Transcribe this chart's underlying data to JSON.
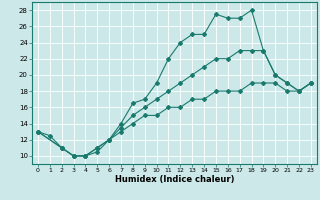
{
  "xlabel": "Humidex (Indice chaleur)",
  "bg_color": "#cce8e8",
  "grid_color": "#ffffff",
  "line_color": "#1a7a6e",
  "xlim": [
    -0.5,
    23.5
  ],
  "ylim": [
    9,
    29
  ],
  "xticks": [
    0,
    1,
    2,
    3,
    4,
    5,
    6,
    7,
    8,
    9,
    10,
    11,
    12,
    13,
    14,
    15,
    16,
    17,
    18,
    19,
    20,
    21,
    22,
    23
  ],
  "yticks": [
    10,
    12,
    14,
    16,
    18,
    20,
    22,
    24,
    26,
    28
  ],
  "series": [
    {
      "x": [
        0,
        1,
        2,
        3,
        4,
        5,
        6,
        7,
        8,
        9,
        10,
        11,
        12,
        13,
        14,
        15,
        16,
        17,
        18,
        19,
        20,
        21,
        22,
        23
      ],
      "y": [
        13,
        12.5,
        11,
        10,
        10,
        10.5,
        12,
        14,
        16.5,
        17,
        19,
        22,
        24,
        25,
        25,
        27.5,
        27,
        27,
        28,
        23,
        20,
        19,
        18,
        19
      ]
    },
    {
      "x": [
        0,
        2,
        3,
        4,
        5,
        6,
        7,
        8,
        9,
        10,
        11,
        12,
        13,
        14,
        15,
        16,
        17,
        18,
        19,
        20,
        21,
        22,
        23
      ],
      "y": [
        13,
        11,
        10,
        10,
        11,
        12,
        13.5,
        15,
        16,
        17,
        18,
        19,
        20,
        21,
        22,
        22,
        23,
        23,
        23,
        20,
        19,
        18,
        19
      ]
    },
    {
      "x": [
        0,
        2,
        3,
        4,
        5,
        6,
        7,
        8,
        9,
        10,
        11,
        12,
        13,
        14,
        15,
        16,
        17,
        18,
        19,
        20,
        21,
        22,
        23
      ],
      "y": [
        13,
        11,
        10,
        10,
        11,
        12,
        13,
        14,
        15,
        15,
        16,
        16,
        17,
        17,
        18,
        18,
        18,
        19,
        19,
        19,
        18,
        18,
        19
      ]
    }
  ]
}
